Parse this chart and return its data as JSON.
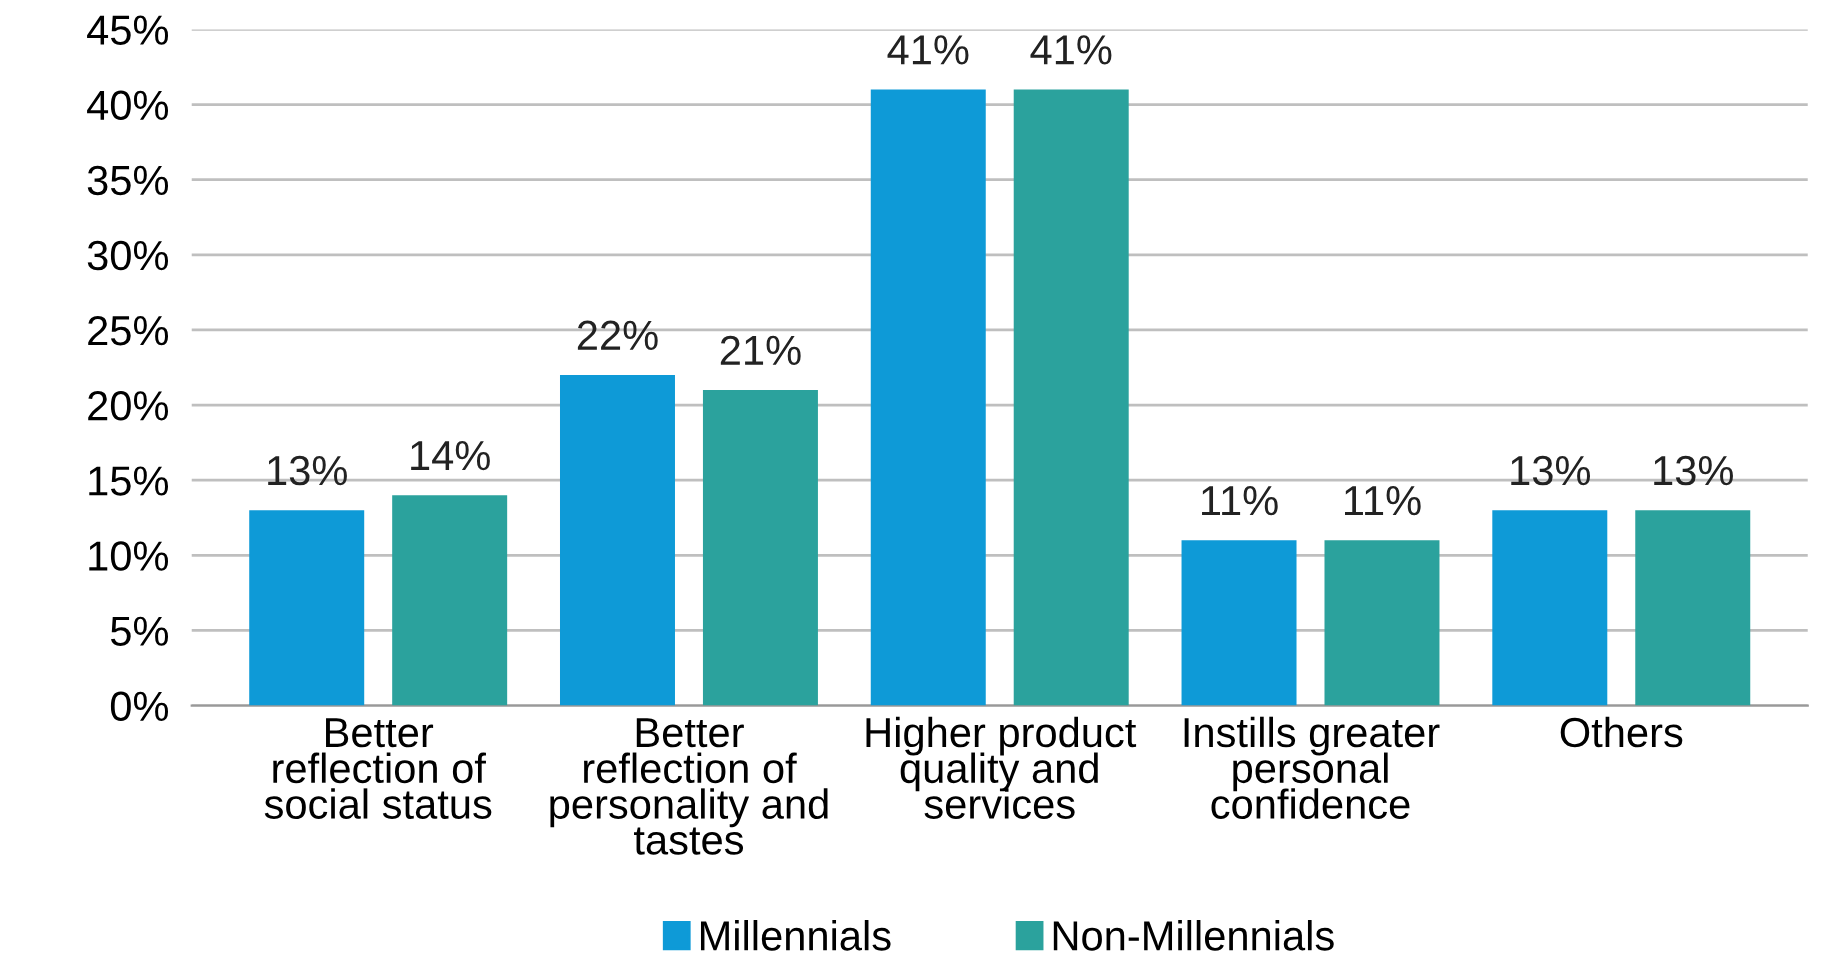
{
  "chart_data": {
    "type": "bar",
    "categories": [
      "Better\nreflection of\nsocial status",
      "Better\nreflection of\npersonality and\ntastes",
      "Higher product\nquality and\nservices",
      "Instills greater\npersonal\nconfidence",
      "Others"
    ],
    "series": [
      {
        "name": "Millennials",
        "color": "#0e9ad7",
        "values": [
          13,
          22,
          41,
          11,
          13
        ],
        "value_labels": [
          "13%",
          "22%",
          "41%",
          "11%",
          "13%"
        ]
      },
      {
        "name": "Non-Millennials",
        "color": "#2ba29d",
        "values": [
          14,
          21,
          41,
          11,
          13
        ],
        "value_labels": [
          "14%",
          "21%",
          "41%",
          "11%",
          "13%"
        ]
      }
    ],
    "ylim": [
      0,
      45
    ],
    "yticks": [
      {
        "value": 0,
        "label": "0%"
      },
      {
        "value": 5,
        "label": "5%"
      },
      {
        "value": 10,
        "label": "10%"
      },
      {
        "value": 15,
        "label": "15%"
      },
      {
        "value": 20,
        "label": "20%"
      },
      {
        "value": 25,
        "label": "25%"
      },
      {
        "value": 30,
        "label": "30%"
      },
      {
        "value": 35,
        "label": "35%"
      },
      {
        "value": 40,
        "label": "40%"
      },
      {
        "value": 45,
        "label": "45%"
      }
    ],
    "grid": "y",
    "legend": "bottom"
  }
}
